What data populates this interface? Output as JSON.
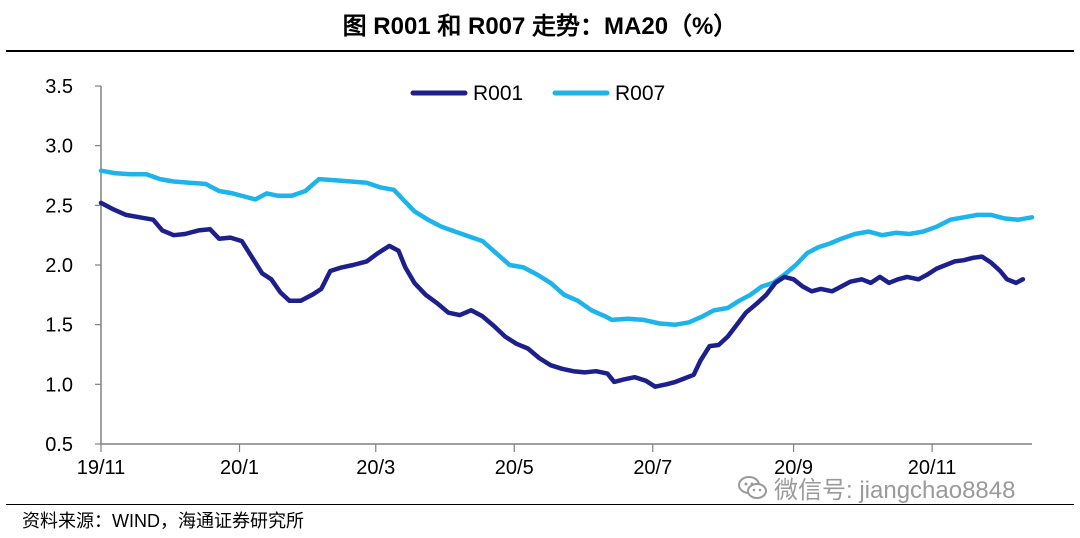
{
  "title": "图  R001 和 R007 走势：MA20（%）",
  "source": "资料来源：WIND，海通证券研究所",
  "watermark": {
    "text": "微信号: jiangchao8848",
    "icon": "wechat-icon"
  },
  "colors": {
    "R001": "#1c1f8c",
    "R007": "#1cb4ea",
    "axis": "#808080"
  },
  "chart_data": {
    "type": "line",
    "title": "图  R001 和 R007 走势：MA20（%）",
    "xlabel": "",
    "ylabel": "",
    "ylim": [
      0.5,
      3.5
    ],
    "yticks": [
      "0.5",
      "1.0",
      "1.5",
      "2.0",
      "2.5",
      "3.0",
      "3.5"
    ],
    "xlim": [
      "2019-11-01",
      "2020-12-15"
    ],
    "xticks": [
      {
        "label": "19/11",
        "date": "2019-11-01"
      },
      {
        "label": "20/1",
        "date": "2020-01-01"
      },
      {
        "label": "20/3",
        "date": "2020-03-01"
      },
      {
        "label": "20/5",
        "date": "2020-05-01"
      },
      {
        "label": "20/7",
        "date": "2020-07-01"
      },
      {
        "label": "20/9",
        "date": "2020-09-01"
      },
      {
        "label": "20/11",
        "date": "2020-11-01"
      }
    ],
    "grid": false,
    "legend": "top-center",
    "series": [
      {
        "name": "R001",
        "points": [
          [
            "2019-11-01",
            2.52
          ],
          [
            "2019-11-06",
            2.47
          ],
          [
            "2019-11-12",
            2.42
          ],
          [
            "2019-11-18",
            2.4
          ],
          [
            "2019-11-24",
            2.38
          ],
          [
            "2019-11-28",
            2.29
          ],
          [
            "2019-12-03",
            2.25
          ],
          [
            "2019-12-08",
            2.26
          ],
          [
            "2019-12-14",
            2.29
          ],
          [
            "2019-12-19",
            2.3
          ],
          [
            "2019-12-23",
            2.22
          ],
          [
            "2019-12-28",
            2.23
          ],
          [
            "2020-01-02",
            2.2
          ],
          [
            "2020-01-07",
            2.05
          ],
          [
            "2020-01-11",
            1.93
          ],
          [
            "2020-01-15",
            1.88
          ],
          [
            "2020-01-19",
            1.77
          ],
          [
            "2020-01-23",
            1.7
          ],
          [
            "2020-01-28",
            1.7
          ],
          [
            "2020-02-02",
            1.75
          ],
          [
            "2020-02-06",
            1.8
          ],
          [
            "2020-02-10",
            1.95
          ],
          [
            "2020-02-15",
            1.98
          ],
          [
            "2020-02-20",
            2.0
          ],
          [
            "2020-02-26",
            2.03
          ],
          [
            "2020-03-02",
            2.1
          ],
          [
            "2020-03-07",
            2.16
          ],
          [
            "2020-03-11",
            2.12
          ],
          [
            "2020-03-14",
            1.98
          ],
          [
            "2020-03-18",
            1.85
          ],
          [
            "2020-03-23",
            1.75
          ],
          [
            "2020-03-28",
            1.68
          ],
          [
            "2020-04-02",
            1.6
          ],
          [
            "2020-04-07",
            1.58
          ],
          [
            "2020-04-12",
            1.62
          ],
          [
            "2020-04-17",
            1.57
          ],
          [
            "2020-04-22",
            1.49
          ],
          [
            "2020-04-27",
            1.4
          ],
          [
            "2020-05-02",
            1.34
          ],
          [
            "2020-05-07",
            1.3
          ],
          [
            "2020-05-12",
            1.22
          ],
          [
            "2020-05-17",
            1.16
          ],
          [
            "2020-05-22",
            1.13
          ],
          [
            "2020-05-27",
            1.11
          ],
          [
            "2020-06-01",
            1.1
          ],
          [
            "2020-06-06",
            1.11
          ],
          [
            "2020-06-11",
            1.09
          ],
          [
            "2020-06-14",
            1.02
          ],
          [
            "2020-06-18",
            1.04
          ],
          [
            "2020-06-23",
            1.06
          ],
          [
            "2020-06-28",
            1.03
          ],
          [
            "2020-07-02",
            0.98
          ],
          [
            "2020-07-07",
            1.0
          ],
          [
            "2020-07-11",
            1.02
          ],
          [
            "2020-07-15",
            1.05
          ],
          [
            "2020-07-19",
            1.08
          ],
          [
            "2020-07-22",
            1.2
          ],
          [
            "2020-07-26",
            1.32
          ],
          [
            "2020-07-30",
            1.33
          ],
          [
            "2020-08-03",
            1.4
          ],
          [
            "2020-08-07",
            1.5
          ],
          [
            "2020-08-11",
            1.6
          ],
          [
            "2020-08-16",
            1.68
          ],
          [
            "2020-08-20",
            1.75
          ],
          [
            "2020-08-24",
            1.85
          ],
          [
            "2020-08-28",
            1.9
          ],
          [
            "2020-09-01",
            1.88
          ],
          [
            "2020-09-05",
            1.82
          ],
          [
            "2020-09-09",
            1.78
          ],
          [
            "2020-09-13",
            1.8
          ],
          [
            "2020-09-18",
            1.78
          ],
          [
            "2020-09-22",
            1.82
          ],
          [
            "2020-09-26",
            1.86
          ],
          [
            "2020-10-01",
            1.88
          ],
          [
            "2020-10-05",
            1.85
          ],
          [
            "2020-10-09",
            1.9
          ],
          [
            "2020-10-13",
            1.85
          ],
          [
            "2020-10-17",
            1.88
          ],
          [
            "2020-10-21",
            1.9
          ],
          [
            "2020-10-26",
            1.88
          ],
          [
            "2020-10-30",
            1.92
          ],
          [
            "2020-11-03",
            1.97
          ],
          [
            "2020-11-07",
            2.0
          ],
          [
            "2020-11-11",
            2.03
          ],
          [
            "2020-11-15",
            2.04
          ],
          [
            "2020-11-19",
            2.06
          ],
          [
            "2020-11-23",
            2.07
          ],
          [
            "2020-11-27",
            2.02
          ],
          [
            "2020-12-01",
            1.95
          ],
          [
            "2020-12-04",
            1.88
          ],
          [
            "2020-12-08",
            1.85
          ],
          [
            "2020-12-11",
            1.88
          ]
        ]
      },
      {
        "name": "R007",
        "points": [
          [
            "2019-11-01",
            2.79
          ],
          [
            "2019-11-07",
            2.77
          ],
          [
            "2019-11-14",
            2.76
          ],
          [
            "2019-11-21",
            2.76
          ],
          [
            "2019-11-27",
            2.72
          ],
          [
            "2019-12-03",
            2.7
          ],
          [
            "2019-12-10",
            2.69
          ],
          [
            "2019-12-17",
            2.68
          ],
          [
            "2019-12-23",
            2.62
          ],
          [
            "2019-12-29",
            2.6
          ],
          [
            "2020-01-04",
            2.57
          ],
          [
            "2020-01-08",
            2.55
          ],
          [
            "2020-01-13",
            2.6
          ],
          [
            "2020-01-18",
            2.58
          ],
          [
            "2020-01-24",
            2.58
          ],
          [
            "2020-01-30",
            2.62
          ],
          [
            "2020-02-05",
            2.72
          ],
          [
            "2020-02-12",
            2.71
          ],
          [
            "2020-02-19",
            2.7
          ],
          [
            "2020-02-26",
            2.69
          ],
          [
            "2020-03-03",
            2.65
          ],
          [
            "2020-03-09",
            2.63
          ],
          [
            "2020-03-13",
            2.55
          ],
          [
            "2020-03-18",
            2.45
          ],
          [
            "2020-03-24",
            2.38
          ],
          [
            "2020-03-30",
            2.32
          ],
          [
            "2020-04-05",
            2.28
          ],
          [
            "2020-04-11",
            2.24
          ],
          [
            "2020-04-17",
            2.2
          ],
          [
            "2020-04-23",
            2.1
          ],
          [
            "2020-04-29",
            2.0
          ],
          [
            "2020-05-05",
            1.98
          ],
          [
            "2020-05-11",
            1.92
          ],
          [
            "2020-05-17",
            1.85
          ],
          [
            "2020-05-23",
            1.75
          ],
          [
            "2020-05-29",
            1.7
          ],
          [
            "2020-06-04",
            1.62
          ],
          [
            "2020-06-10",
            1.57
          ],
          [
            "2020-06-13",
            1.54
          ],
          [
            "2020-06-20",
            1.55
          ],
          [
            "2020-06-27",
            1.54
          ],
          [
            "2020-07-04",
            1.51
          ],
          [
            "2020-07-11",
            1.5
          ],
          [
            "2020-07-17",
            1.52
          ],
          [
            "2020-07-23",
            1.57
          ],
          [
            "2020-07-28",
            1.62
          ],
          [
            "2020-08-03",
            1.64
          ],
          [
            "2020-08-08",
            1.7
          ],
          [
            "2020-08-13",
            1.75
          ],
          [
            "2020-08-18",
            1.82
          ],
          [
            "2020-08-23",
            1.85
          ],
          [
            "2020-08-28",
            1.92
          ],
          [
            "2020-09-02",
            2.0
          ],
          [
            "2020-09-07",
            2.1
          ],
          [
            "2020-09-12",
            2.15
          ],
          [
            "2020-09-17",
            2.18
          ],
          [
            "2020-09-22",
            2.22
          ],
          [
            "2020-09-28",
            2.26
          ],
          [
            "2020-10-04",
            2.28
          ],
          [
            "2020-10-10",
            2.25
          ],
          [
            "2020-10-16",
            2.27
          ],
          [
            "2020-10-22",
            2.26
          ],
          [
            "2020-10-28",
            2.28
          ],
          [
            "2020-11-03",
            2.32
          ],
          [
            "2020-11-09",
            2.38
          ],
          [
            "2020-11-15",
            2.4
          ],
          [
            "2020-11-21",
            2.42
          ],
          [
            "2020-11-27",
            2.42
          ],
          [
            "2020-12-03",
            2.39
          ],
          [
            "2020-12-09",
            2.38
          ],
          [
            "2020-12-15",
            2.4
          ]
        ]
      }
    ]
  }
}
